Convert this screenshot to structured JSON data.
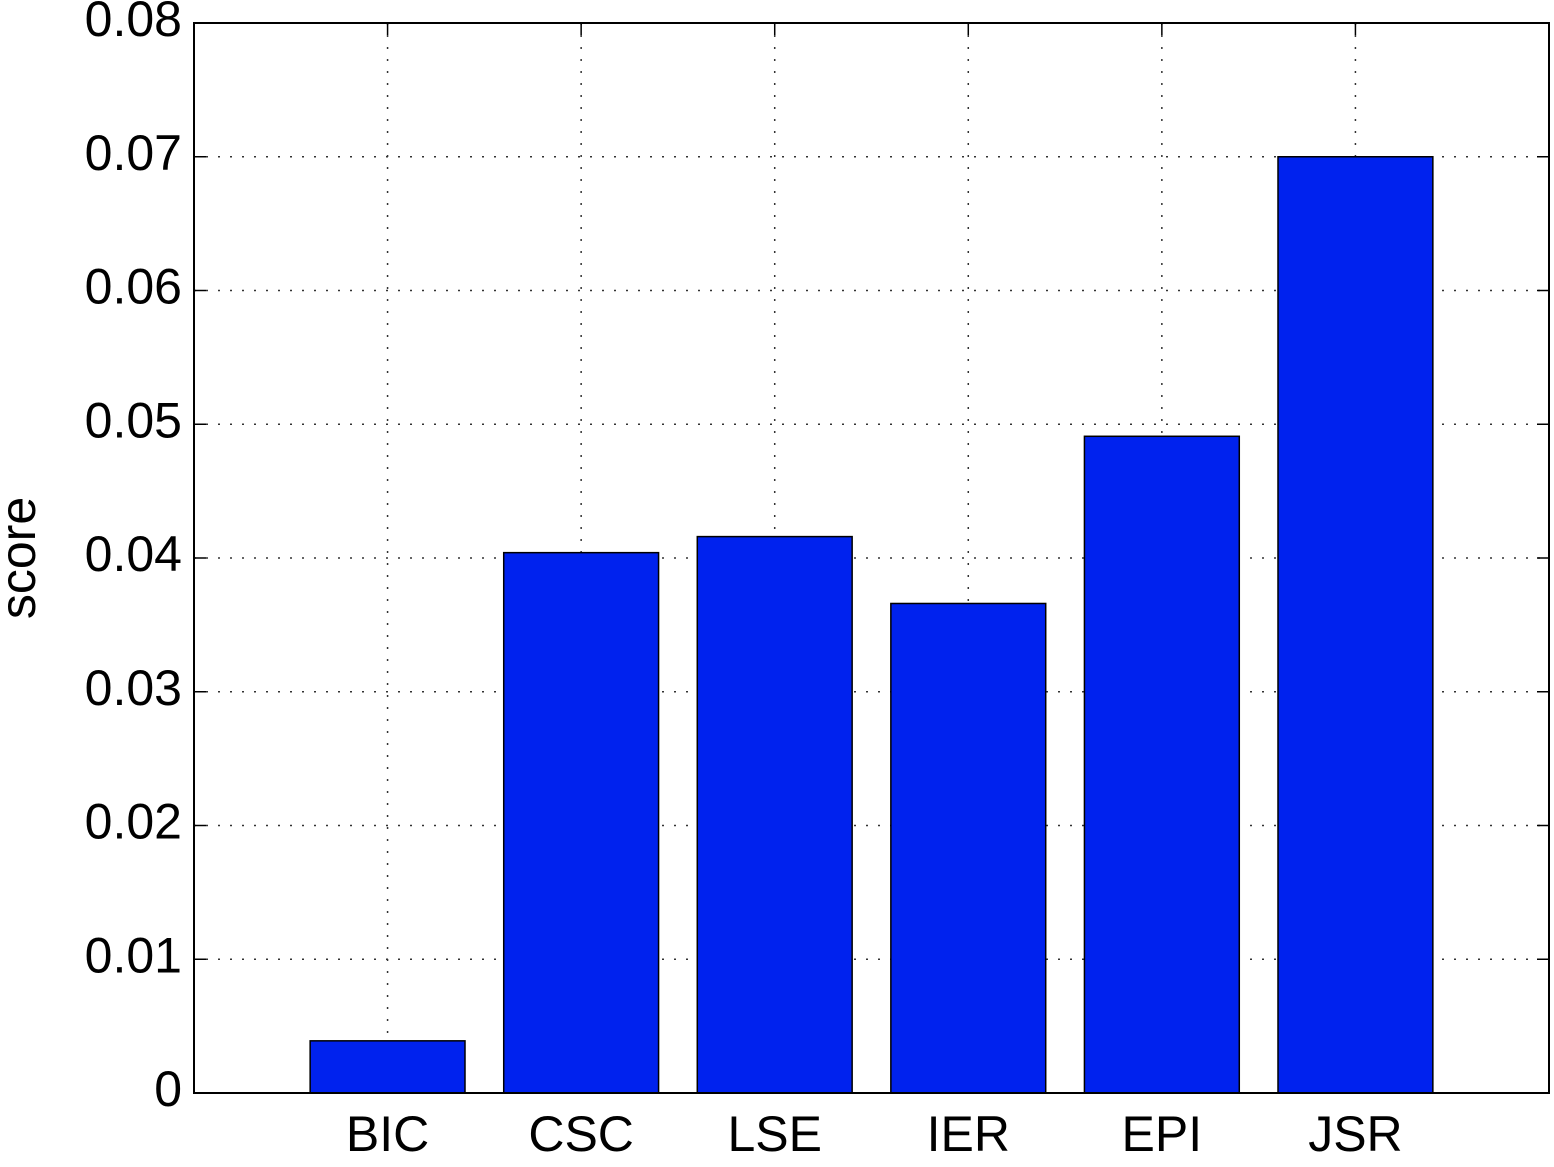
{
  "chart_data": {
    "type": "bar",
    "y_label": "score",
    "categories": [
      "BIC",
      "CSC",
      "LSE",
      "IER",
      "EPI",
      "JSR"
    ],
    "values": [
      0.0039,
      0.0404,
      0.0416,
      0.0366,
      0.0491,
      0.07
    ],
    "color": "#0022ee",
    "ylim": [
      0,
      0.08
    ],
    "yticks": [
      0,
      0.01,
      0.02,
      0.03,
      0.04,
      0.05,
      0.06,
      0.07,
      0.08
    ],
    "grid": true
  }
}
